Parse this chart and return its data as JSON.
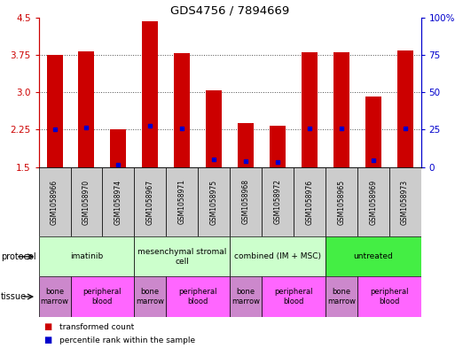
{
  "title": "GDS4756 / 7894669",
  "samples": [
    "GSM1058966",
    "GSM1058970",
    "GSM1058974",
    "GSM1058967",
    "GSM1058971",
    "GSM1058975",
    "GSM1058968",
    "GSM1058972",
    "GSM1058976",
    "GSM1058965",
    "GSM1058969",
    "GSM1058973"
  ],
  "transformed_count": [
    3.75,
    3.82,
    2.25,
    4.43,
    3.79,
    3.03,
    2.38,
    2.33,
    3.8,
    3.8,
    2.92,
    3.83
  ],
  "percentile_rank": [
    2.25,
    2.29,
    1.54,
    2.33,
    2.27,
    1.65,
    1.62,
    1.6,
    2.27,
    2.27,
    1.63,
    2.28
  ],
  "ylim_left": [
    1.5,
    4.5
  ],
  "ylim_right": [
    0,
    100
  ],
  "yticks_left": [
    1.5,
    2.25,
    3.0,
    3.75,
    4.5
  ],
  "yticks_right": [
    0,
    25,
    50,
    75,
    100
  ],
  "protocols": [
    {
      "label": "imatinib",
      "start": 0,
      "end": 3,
      "color": "#ccffcc"
    },
    {
      "label": "mesenchymal stromal\ncell",
      "start": 3,
      "end": 6,
      "color": "#ccffcc"
    },
    {
      "label": "combined (IM + MSC)",
      "start": 6,
      "end": 9,
      "color": "#ccffcc"
    },
    {
      "label": "untreated",
      "start": 9,
      "end": 12,
      "color": "#44ee44"
    }
  ],
  "tissues": [
    {
      "label": "bone\nmarrow",
      "start": 0,
      "end": 1,
      "color": "#cc88cc"
    },
    {
      "label": "peripheral\nblood",
      "start": 1,
      "end": 3,
      "color": "#ff66ff"
    },
    {
      "label": "bone\nmarrow",
      "start": 3,
      "end": 4,
      "color": "#cc88cc"
    },
    {
      "label": "peripheral\nblood",
      "start": 4,
      "end": 6,
      "color": "#ff66ff"
    },
    {
      "label": "bone\nmarrow",
      "start": 6,
      "end": 7,
      "color": "#cc88cc"
    },
    {
      "label": "peripheral\nblood",
      "start": 7,
      "end": 9,
      "color": "#ff66ff"
    },
    {
      "label": "bone\nmarrow",
      "start": 9,
      "end": 10,
      "color": "#cc88cc"
    },
    {
      "label": "peripheral\nblood",
      "start": 10,
      "end": 12,
      "color": "#ff66ff"
    }
  ],
  "bar_color": "#cc0000",
  "dot_color": "#0000cc",
  "bar_width": 0.5,
  "left_axis_color": "#cc0000",
  "right_axis_color": "#0000cc",
  "grid_color": "gray",
  "sample_box_color": "#cccccc"
}
